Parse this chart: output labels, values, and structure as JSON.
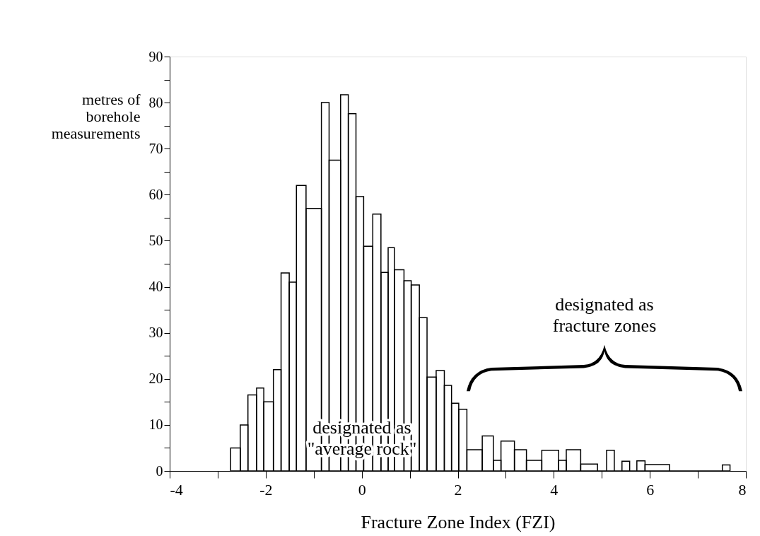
{
  "chart_data": {
    "type": "histogram",
    "xlabel": "Fracture Zone Index (FZI)",
    "ylabel": "metres of\nborehole\nmeasurements",
    "bins": [
      -2.73,
      -2.53,
      -2.37,
      -2.19,
      -2.04,
      -1.84,
      -1.68,
      -1.51,
      -1.36,
      -1.16,
      -0.84,
      -0.68,
      -0.44,
      -0.28,
      -0.12,
      0.04,
      0.23,
      0.4,
      0.55,
      0.68,
      0.88,
      1.03,
      1.2,
      1.36,
      1.55,
      1.72,
      1.87,
      2.02,
      2.19,
      2.51,
      2.74,
      2.9,
      3.18,
      3.43,
      3.75,
      4.1,
      4.26,
      4.56,
      4.91,
      5.1,
      5.26,
      5.42,
      5.58,
      5.73,
      5.9,
      6.41,
      7.51,
      7.67
    ],
    "values": [
      5,
      10,
      16.5,
      18,
      15,
      22,
      43,
      41,
      62,
      57,
      80,
      67.5,
      81.7,
      77.6,
      59.6,
      48.8,
      55.8,
      43.1,
      48.5,
      43.7,
      41.3,
      40.4,
      33.3,
      20.4,
      21.8,
      18.6,
      14.7,
      13.4,
      4.6,
      7.6,
      2.3,
      6.5,
      4.6,
      2.3,
      4.5,
      2.3,
      4.6,
      1.5,
      0,
      4.5,
      0,
      2.1,
      0,
      2.2,
      1.4,
      0,
      1.3
    ],
    "color": "#000000",
    "xlim": [
      -4,
      8
    ],
    "xticks": [
      -4,
      {
        "value": -3,
        "label": null
      },
      -2,
      {
        "value": -1,
        "label": null
      },
      0,
      {
        "value": 1,
        "label": null
      },
      2,
      {
        "value": 3,
        "label": null
      },
      4,
      {
        "value": 5,
        "label": null
      },
      6,
      {
        "value": 7,
        "label": null
      },
      8
    ],
    "ylim": [
      0,
      90
    ],
    "yticks": [
      0,
      {
        "value": 5,
        "label": null
      },
      10,
      {
        "value": 15,
        "label": null
      },
      20,
      {
        "value": 25,
        "label": null
      },
      30,
      {
        "value": 35,
        "label": null
      },
      40,
      {
        "value": 45,
        "label": null
      },
      50,
      {
        "value": 55,
        "label": null
      },
      60,
      {
        "value": 65,
        "label": null
      },
      70,
      {
        "value": 75,
        "label": null
      },
      80,
      {
        "value": 85,
        "label": null
      },
      90
    ],
    "annotations": [
      "designated as\n\"average rock\"",
      "designated as\nfracture zones"
    ]
  }
}
